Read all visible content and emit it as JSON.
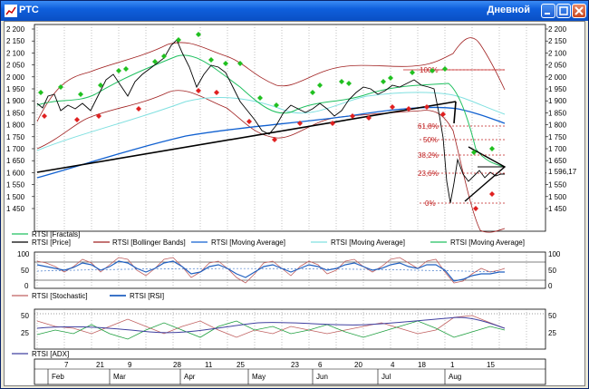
{
  "window": {
    "title": "РТС",
    "period": "Дневной"
  },
  "price_axis": {
    "ticks": [
      "2 200",
      "2 150",
      "2 100",
      "2 050",
      "2 000",
      "1 950",
      "1 900",
      "1 850",
      "1 800",
      "1 750",
      "1 700",
      "1 650",
      "1 600",
      "1 550",
      "1 500",
      "1 450"
    ],
    "last_value": "1 596,17"
  },
  "fib": {
    "l100": "100%",
    "l618": "61,8%",
    "l50": "50%",
    "l382": "38,2%",
    "l236": "23,6%",
    "l0": "0%"
  },
  "legends": {
    "fractals": "RTSI [Fractals]",
    "price": "RTSI [Price]",
    "bollinger": "RTSI [Bollinger Bands]",
    "ma1": "RTSI [Moving Average]",
    "ma2": "RTSI [Moving Average]",
    "ma3": "RTSI [Moving Average]",
    "stochastic": "RTSI [Stochastic]",
    "rsi": "RTSI [RSI]",
    "adx": "RTSI [ADX]"
  },
  "osc_axis": [
    "100",
    "50",
    "0"
  ],
  "adx_axis": [
    "50",
    "25"
  ],
  "date_axis": {
    "days": [
      "7",
      "21",
      "9",
      "28",
      "11",
      "25",
      "23",
      "6",
      "20",
      "4",
      "18",
      "1",
      "15"
    ],
    "months": [
      "Feb",
      "Mar",
      "Apr",
      "May",
      "Jun",
      "Jul",
      "Aug"
    ]
  },
  "colors": {
    "price": "#000000",
    "bollinger": "#a02020",
    "ma_long": "#1060d0",
    "ma_mid": "#80e0e0",
    "ma_fast": "#20c060",
    "fib": "#c02020",
    "stoch": "#c06060",
    "rsi": "#2060c0",
    "adx": "#4040a0"
  },
  "chart_data": {
    "type": "line",
    "ylim": [
      1450,
      2200
    ],
    "y_ticks": [
      2200,
      2150,
      2100,
      2050,
      2000,
      1950,
      1900,
      1850,
      1800,
      1750,
      1700,
      1650,
      1600,
      1550,
      1500,
      1450
    ],
    "last_price": 1596.17
  }
}
